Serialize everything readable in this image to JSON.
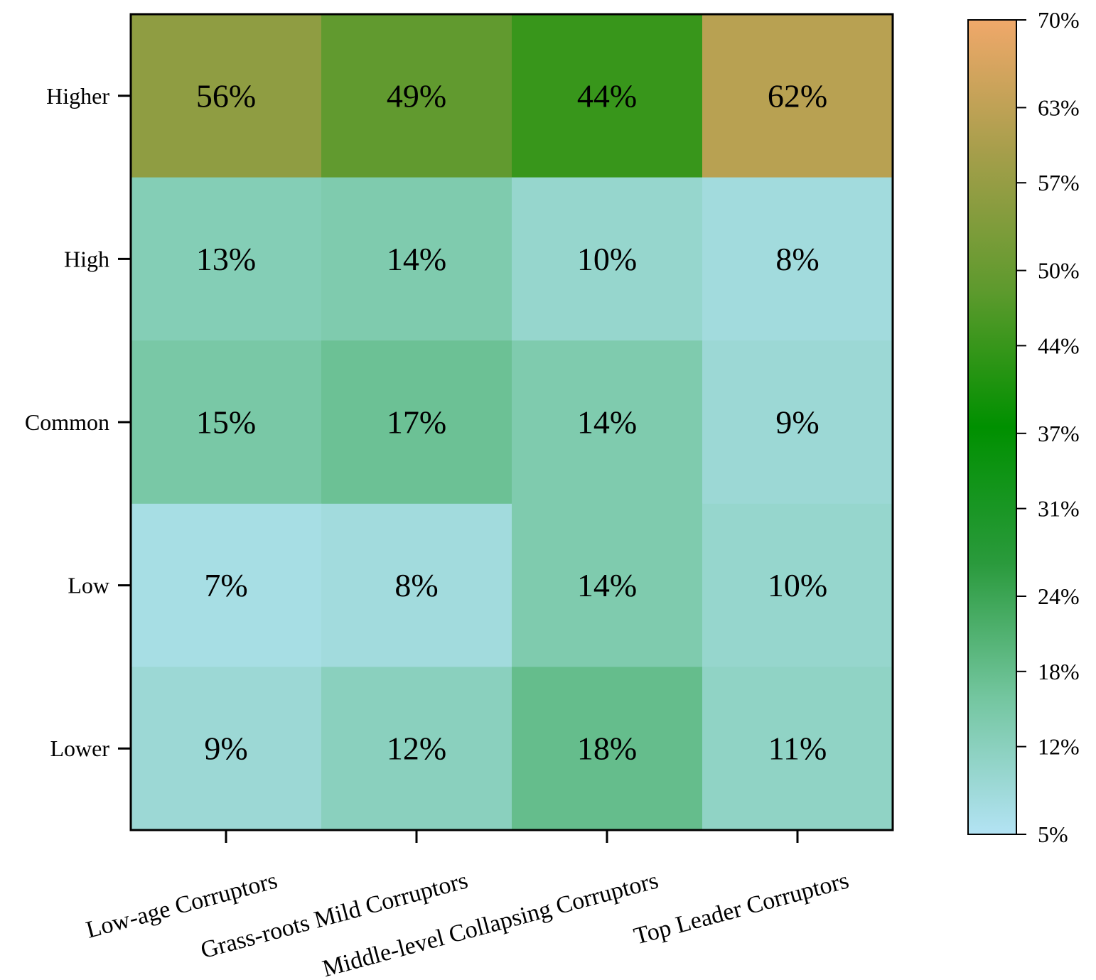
{
  "chart_data": {
    "type": "heatmap",
    "title": "",
    "xlabel": "",
    "ylabel": "",
    "rows": [
      "Higher",
      "High",
      "Common",
      "Low",
      "Lower"
    ],
    "columns": [
      "Low-age Corruptors",
      "Grass-roots Mild Corruptors",
      "Middle-level Collapsing Corruptors",
      "Top Leader Corruptors"
    ],
    "values": [
      [
        56,
        49,
        44,
        62
      ],
      [
        13,
        14,
        10,
        8
      ],
      [
        15,
        17,
        14,
        9
      ],
      [
        7,
        8,
        14,
        10
      ],
      [
        9,
        12,
        18,
        11
      ]
    ],
    "cell_labels": [
      [
        "56%",
        "49%",
        "44%",
        "62%"
      ],
      [
        "13%",
        "14%",
        "10%",
        "8%"
      ],
      [
        "15%",
        "17%",
        "14%",
        "9%"
      ],
      [
        "7%",
        "8%",
        "14%",
        "10%"
      ],
      [
        "9%",
        "12%",
        "18%",
        "11%"
      ]
    ],
    "value_unit": "%",
    "colorbar": {
      "range": [
        5,
        70
      ],
      "ticks": [
        5,
        12,
        18,
        24,
        31,
        37,
        44,
        50,
        57,
        63,
        70
      ],
      "tick_labels": [
        "5%",
        "12%",
        "18%",
        "24%",
        "31%",
        "37%",
        "44%",
        "50%",
        "57%",
        "63%",
        "70%"
      ],
      "colors": [
        "#b3e3f4",
        "#74c6a0",
        "#2a9a3c",
        "#009000",
        "#5d9a2d",
        "#a49e4a",
        "#f0a86a"
      ]
    }
  }
}
